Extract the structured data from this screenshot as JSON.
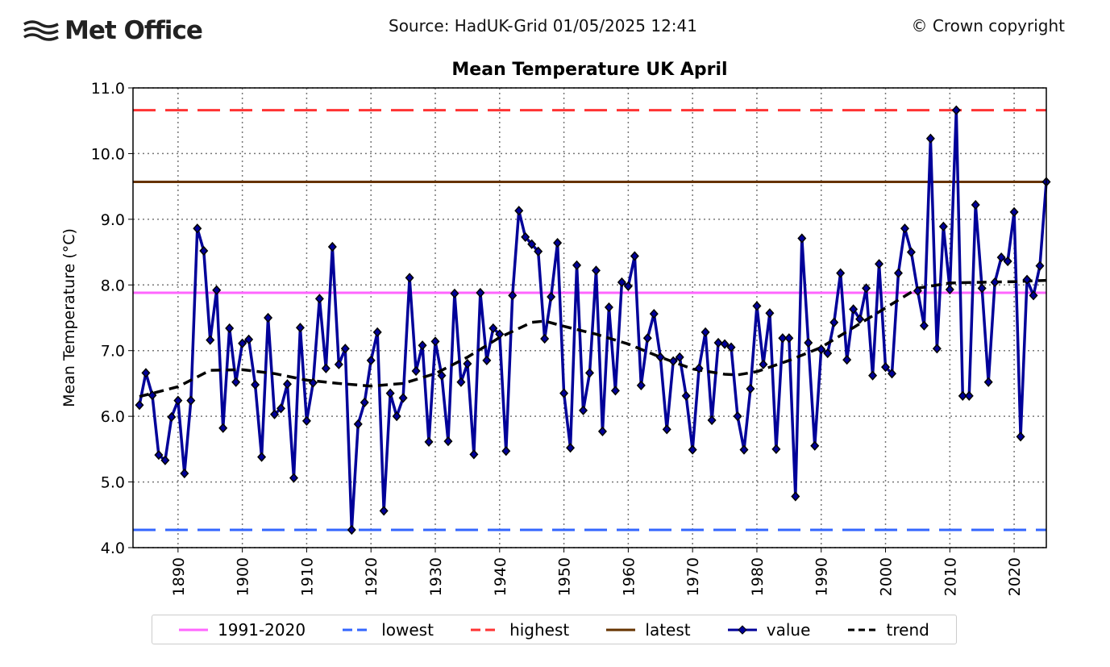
{
  "header": {
    "logo_text": "Met Office",
    "source": "Source: HadUK-Grid 01/05/2025 12:41",
    "copyright": "© Crown copyright"
  },
  "chart_data": {
    "type": "line",
    "title": "Mean Temperature UK April",
    "xlabel": "",
    "ylabel": "Mean Temperature (°C)",
    "xlim": [
      1883,
      2025
    ],
    "ylim": [
      4.0,
      11.0
    ],
    "yticks": [
      "4.0",
      "5.0",
      "6.0",
      "7.0",
      "8.0",
      "9.0",
      "10.0",
      "11.0"
    ],
    "xticks": [
      "1890",
      "1900",
      "1910",
      "1920",
      "1930",
      "1940",
      "1950",
      "1960",
      "1970",
      "1980",
      "1990",
      "2000",
      "2010",
      "2020"
    ],
    "grid": true,
    "legend_placement": "bottom",
    "reference_lines": [
      {
        "name": "1991-2020",
        "value": 7.88,
        "color": "#ff66ff",
        "style": "solid"
      },
      {
        "name": "lowest",
        "value": 4.27,
        "color": "#3366ff",
        "style": "dashed"
      },
      {
        "name": "highest",
        "value": 10.66,
        "color": "#ff3333",
        "style": "dashed"
      },
      {
        "name": "latest",
        "value": 9.57,
        "color": "#663300",
        "style": "solid"
      }
    ],
    "series": [
      {
        "name": "value",
        "color": "#000099",
        "marker": "diamond",
        "x_start": 1884,
        "values": [
          6.17,
          6.66,
          6.32,
          5.41,
          5.33,
          5.99,
          6.24,
          5.13,
          6.24,
          8.86,
          8.52,
          7.16,
          7.92,
          5.82,
          7.34,
          6.52,
          7.11,
          7.17,
          6.48,
          5.38,
          7.5,
          6.03,
          6.12,
          6.49,
          5.06,
          7.35,
          5.93,
          6.51,
          7.79,
          6.73,
          8.58,
          6.79,
          7.03,
          4.27,
          5.88,
          6.21,
          6.85,
          7.28,
          4.56,
          6.35,
          6.0,
          6.28,
          8.11,
          6.69,
          7.08,
          5.61,
          7.14,
          6.62,
          5.62,
          7.87,
          6.52,
          6.8,
          5.42,
          7.88,
          6.85,
          7.34,
          7.25,
          5.47,
          7.84,
          9.13,
          8.73,
          8.62,
          8.51,
          7.18,
          7.82,
          8.64,
          6.35,
          5.52,
          8.3,
          6.09,
          6.66,
          8.22,
          5.77,
          7.66,
          6.39,
          8.04,
          7.98,
          8.44,
          6.47,
          7.19,
          7.56,
          6.9,
          5.8,
          6.84,
          6.9,
          6.31,
          5.49,
          6.73,
          7.28,
          5.94,
          7.12,
          7.1,
          7.05,
          6.0,
          5.49,
          6.42,
          7.68,
          6.79,
          7.57,
          5.5,
          7.19,
          7.19,
          4.78,
          8.71,
          7.12,
          5.55,
          7.02,
          6.96,
          7.43,
          8.18,
          6.86,
          7.63,
          7.48,
          7.95,
          6.62,
          8.32,
          6.75,
          6.65,
          8.18,
          8.86,
          8.5,
          7.91,
          7.38,
          10.23,
          7.03,
          8.89,
          7.93,
          10.66,
          6.31,
          6.31,
          9.22,
          7.95,
          6.52,
          8.04,
          8.42,
          8.36,
          9.11,
          5.69,
          8.08,
          7.84,
          8.29,
          9.57
        ]
      },
      {
        "name": "trend",
        "color": "#000000",
        "style": "dashed",
        "x": [
          1884,
          1890,
          1895,
          1900,
          1905,
          1910,
          1915,
          1920,
          1925,
          1930,
          1935,
          1940,
          1945,
          1947,
          1950,
          1955,
          1960,
          1965,
          1970,
          1975,
          1977,
          1980,
          1985,
          1990,
          1995,
          2000,
          2005,
          2010,
          2015,
          2020,
          2025
        ],
        "values": [
          6.3,
          6.45,
          6.7,
          6.71,
          6.65,
          6.55,
          6.5,
          6.46,
          6.5,
          6.65,
          6.9,
          7.2,
          7.43,
          7.45,
          7.37,
          7.25,
          7.1,
          6.9,
          6.72,
          6.64,
          6.63,
          6.68,
          6.85,
          7.05,
          7.35,
          7.65,
          7.95,
          8.03,
          8.04,
          8.05,
          8.07
        ]
      }
    ]
  },
  "legend": {
    "items": [
      {
        "label": "1991-2020",
        "color": "#ff66ff"
      },
      {
        "label": "lowest",
        "color": "#3366ff"
      },
      {
        "label": "highest",
        "color": "#ff3333"
      },
      {
        "label": "latest",
        "color": "#663300"
      },
      {
        "label": "value",
        "color": "#000099"
      },
      {
        "label": "trend",
        "color": "#000000"
      }
    ]
  }
}
